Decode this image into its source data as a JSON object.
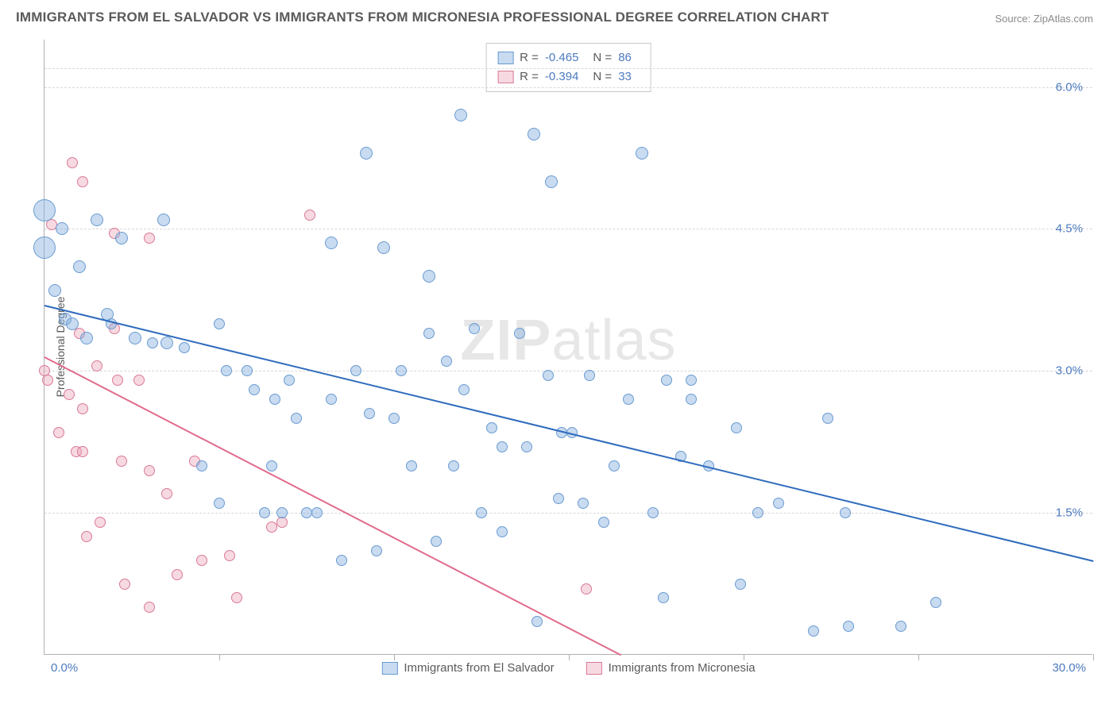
{
  "title": "IMMIGRANTS FROM EL SALVADOR VS IMMIGRANTS FROM MICRONESIA PROFESSIONAL DEGREE CORRELATION CHART",
  "source": "Source: ZipAtlas.com",
  "watermark_a": "ZIP",
  "watermark_b": "atlas",
  "axis": {
    "ylabel": "Professional Degree",
    "xlim": [
      0,
      30
    ],
    "ylim": [
      0,
      6.5
    ],
    "xticks": [
      0,
      5,
      10,
      15,
      20,
      25,
      30
    ],
    "yticks": [
      1.5,
      3.0,
      4.5,
      6.0
    ],
    "ytick_labels": [
      "1.5%",
      "3.0%",
      "4.5%",
      "6.0%"
    ],
    "xlabel_left": "0.0%",
    "xlabel_right": "30.0%",
    "grid_color": "#d8d8d8",
    "axis_color": "#b0b0b0",
    "tick_label_color": "#4d7abf"
  },
  "series": [
    {
      "name": "Immigrants from El Salvador",
      "fill": "rgba(134,176,222,0.45)",
      "stroke": "#6a9bd1",
      "line_color": "#2e6bbd",
      "r_label": "R =",
      "r_value": "-0.465",
      "n_label": "N =",
      "n_value": "86",
      "trend": {
        "x1": 0,
        "y1": 3.7,
        "x2": 30,
        "y2": 1.0
      },
      "points": [
        {
          "x": 0.0,
          "y": 4.7,
          "r": 14
        },
        {
          "x": 0.0,
          "y": 4.3,
          "r": 14
        },
        {
          "x": 0.3,
          "y": 3.85,
          "r": 8
        },
        {
          "x": 0.5,
          "y": 4.5,
          "r": 8
        },
        {
          "x": 0.6,
          "y": 3.55,
          "r": 8
        },
        {
          "x": 0.8,
          "y": 3.5,
          "r": 8
        },
        {
          "x": 1.2,
          "y": 3.35,
          "r": 8
        },
        {
          "x": 1.5,
          "y": 4.6,
          "r": 8
        },
        {
          "x": 1.9,
          "y": 3.5,
          "r": 7
        },
        {
          "x": 2.2,
          "y": 4.4,
          "r": 8
        },
        {
          "x": 2.6,
          "y": 3.35,
          "r": 8
        },
        {
          "x": 1.8,
          "y": 3.6,
          "r": 8
        },
        {
          "x": 3.1,
          "y": 3.3,
          "r": 7
        },
        {
          "x": 3.4,
          "y": 4.6,
          "r": 8
        },
        {
          "x": 3.5,
          "y": 3.3,
          "r": 8
        },
        {
          "x": 4.0,
          "y": 3.25,
          "r": 7
        },
        {
          "x": 5.0,
          "y": 3.5,
          "r": 7
        },
        {
          "x": 5.2,
          "y": 3.0,
          "r": 7
        },
        {
          "x": 5.8,
          "y": 3.0,
          "r": 7
        },
        {
          "x": 6.0,
          "y": 2.8,
          "r": 7
        },
        {
          "x": 6.3,
          "y": 1.5,
          "r": 7
        },
        {
          "x": 6.6,
          "y": 2.7,
          "r": 7
        },
        {
          "x": 6.8,
          "y": 1.5,
          "r": 7
        },
        {
          "x": 7.2,
          "y": 2.5,
          "r": 7
        },
        {
          "x": 7.0,
          "y": 2.9,
          "r": 7
        },
        {
          "x": 7.5,
          "y": 1.5,
          "r": 7
        },
        {
          "x": 7.8,
          "y": 1.5,
          "r": 7
        },
        {
          "x": 8.2,
          "y": 4.35,
          "r": 8
        },
        {
          "x": 8.2,
          "y": 2.7,
          "r": 7
        },
        {
          "x": 8.5,
          "y": 1.0,
          "r": 7
        },
        {
          "x": 8.9,
          "y": 3.0,
          "r": 7
        },
        {
          "x": 9.2,
          "y": 5.3,
          "r": 8
        },
        {
          "x": 9.3,
          "y": 2.55,
          "r": 7
        },
        {
          "x": 9.5,
          "y": 1.1,
          "r": 7
        },
        {
          "x": 9.7,
          "y": 4.3,
          "r": 8
        },
        {
          "x": 10.0,
          "y": 2.5,
          "r": 7
        },
        {
          "x": 10.5,
          "y": 2.0,
          "r": 7
        },
        {
          "x": 11.0,
          "y": 4.0,
          "r": 8
        },
        {
          "x": 11.0,
          "y": 3.4,
          "r": 7
        },
        {
          "x": 11.2,
          "y": 1.2,
          "r": 7
        },
        {
          "x": 11.5,
          "y": 3.1,
          "r": 7
        },
        {
          "x": 11.9,
          "y": 5.7,
          "r": 8
        },
        {
          "x": 12.0,
          "y": 2.8,
          "r": 7
        },
        {
          "x": 12.3,
          "y": 3.45,
          "r": 7
        },
        {
          "x": 12.5,
          "y": 1.5,
          "r": 7
        },
        {
          "x": 12.8,
          "y": 2.4,
          "r": 7
        },
        {
          "x": 13.1,
          "y": 2.2,
          "r": 7
        },
        {
          "x": 13.1,
          "y": 1.3,
          "r": 7
        },
        {
          "x": 13.6,
          "y": 3.4,
          "r": 7
        },
        {
          "x": 13.8,
          "y": 2.2,
          "r": 7
        },
        {
          "x": 14.0,
          "y": 5.5,
          "r": 8
        },
        {
          "x": 14.1,
          "y": 0.35,
          "r": 7
        },
        {
          "x": 14.4,
          "y": 2.95,
          "r": 7
        },
        {
          "x": 14.7,
          "y": 1.65,
          "r": 7
        },
        {
          "x": 14.8,
          "y": 2.35,
          "r": 7
        },
        {
          "x": 15.1,
          "y": 2.35,
          "r": 7
        },
        {
          "x": 15.4,
          "y": 1.6,
          "r": 7
        },
        {
          "x": 15.6,
          "y": 2.95,
          "r": 7
        },
        {
          "x": 16.7,
          "y": 2.7,
          "r": 7
        },
        {
          "x": 17.1,
          "y": 5.3,
          "r": 8
        },
        {
          "x": 17.4,
          "y": 1.5,
          "r": 7
        },
        {
          "x": 17.7,
          "y": 0.6,
          "r": 7
        },
        {
          "x": 17.8,
          "y": 2.9,
          "r": 7
        },
        {
          "x": 18.2,
          "y": 2.1,
          "r": 7
        },
        {
          "x": 18.5,
          "y": 2.9,
          "r": 7
        },
        {
          "x": 18.5,
          "y": 2.7,
          "r": 7
        },
        {
          "x": 19.8,
          "y": 2.4,
          "r": 7
        },
        {
          "x": 19.9,
          "y": 0.75,
          "r": 7
        },
        {
          "x": 20.4,
          "y": 1.5,
          "r": 7
        },
        {
          "x": 22.0,
          "y": 0.25,
          "r": 7
        },
        {
          "x": 22.4,
          "y": 2.5,
          "r": 7
        },
        {
          "x": 22.9,
          "y": 1.5,
          "r": 7
        },
        {
          "x": 23.0,
          "y": 0.3,
          "r": 7
        },
        {
          "x": 1.0,
          "y": 4.1,
          "r": 8
        },
        {
          "x": 4.5,
          "y": 2.0,
          "r": 7
        },
        {
          "x": 5.0,
          "y": 1.6,
          "r": 7
        },
        {
          "x": 6.5,
          "y": 2.0,
          "r": 7
        },
        {
          "x": 10.2,
          "y": 3.0,
          "r": 7
        },
        {
          "x": 16.0,
          "y": 1.4,
          "r": 7
        },
        {
          "x": 16.3,
          "y": 2.0,
          "r": 7
        },
        {
          "x": 19.0,
          "y": 2.0,
          "r": 7
        },
        {
          "x": 21.0,
          "y": 1.6,
          "r": 7
        },
        {
          "x": 24.5,
          "y": 0.3,
          "r": 7
        },
        {
          "x": 25.5,
          "y": 0.55,
          "r": 7
        },
        {
          "x": 14.5,
          "y": 5.0,
          "r": 8
        },
        {
          "x": 11.7,
          "y": 2.0,
          "r": 7
        }
      ]
    },
    {
      "name": "Immigrants from Micronesia",
      "fill": "rgba(235,160,180,0.40)",
      "stroke": "#d97a96",
      "line_color": "#e16b8c",
      "r_label": "R =",
      "r_value": "-0.394",
      "n_label": "N =",
      "n_value": "33",
      "trend": {
        "x1": 0,
        "y1": 3.15,
        "x2": 16.5,
        "y2": 0.0
      },
      "points": [
        {
          "x": 0.2,
          "y": 4.55,
          "r": 7
        },
        {
          "x": 0.0,
          "y": 3.0,
          "r": 7
        },
        {
          "x": 0.1,
          "y": 2.9,
          "r": 7
        },
        {
          "x": 0.4,
          "y": 2.35,
          "r": 7
        },
        {
          "x": 0.8,
          "y": 5.2,
          "r": 7
        },
        {
          "x": 0.7,
          "y": 2.75,
          "r": 7
        },
        {
          "x": 1.1,
          "y": 5.0,
          "r": 7
        },
        {
          "x": 1.0,
          "y": 3.4,
          "r": 7
        },
        {
          "x": 0.9,
          "y": 2.15,
          "r": 7
        },
        {
          "x": 1.1,
          "y": 2.15,
          "r": 7
        },
        {
          "x": 1.2,
          "y": 1.25,
          "r": 7
        },
        {
          "x": 1.5,
          "y": 3.05,
          "r": 7
        },
        {
          "x": 1.6,
          "y": 1.4,
          "r": 7
        },
        {
          "x": 2.0,
          "y": 4.45,
          "r": 7
        },
        {
          "x": 2.0,
          "y": 3.45,
          "r": 7
        },
        {
          "x": 2.1,
          "y": 2.9,
          "r": 7
        },
        {
          "x": 2.2,
          "y": 2.05,
          "r": 7
        },
        {
          "x": 2.3,
          "y": 0.75,
          "r": 7
        },
        {
          "x": 2.7,
          "y": 2.9,
          "r": 7
        },
        {
          "x": 3.0,
          "y": 4.4,
          "r": 7
        },
        {
          "x": 3.0,
          "y": 0.5,
          "r": 7
        },
        {
          "x": 3.5,
          "y": 1.7,
          "r": 7
        },
        {
          "x": 3.8,
          "y": 0.85,
          "r": 7
        },
        {
          "x": 4.3,
          "y": 2.05,
          "r": 7
        },
        {
          "x": 4.5,
          "y": 1.0,
          "r": 7
        },
        {
          "x": 5.3,
          "y": 1.05,
          "r": 7
        },
        {
          "x": 5.5,
          "y": 0.6,
          "r": 7
        },
        {
          "x": 6.5,
          "y": 1.35,
          "r": 7
        },
        {
          "x": 6.8,
          "y": 1.4,
          "r": 7
        },
        {
          "x": 7.6,
          "y": 4.65,
          "r": 7
        },
        {
          "x": 3.0,
          "y": 1.95,
          "r": 7
        },
        {
          "x": 1.1,
          "y": 2.6,
          "r": 7
        },
        {
          "x": 15.5,
          "y": 0.7,
          "r": 7
        }
      ]
    }
  ],
  "legend": {
    "series1": "Immigrants from El Salvador",
    "series2": "Immigrants from Micronesia"
  }
}
